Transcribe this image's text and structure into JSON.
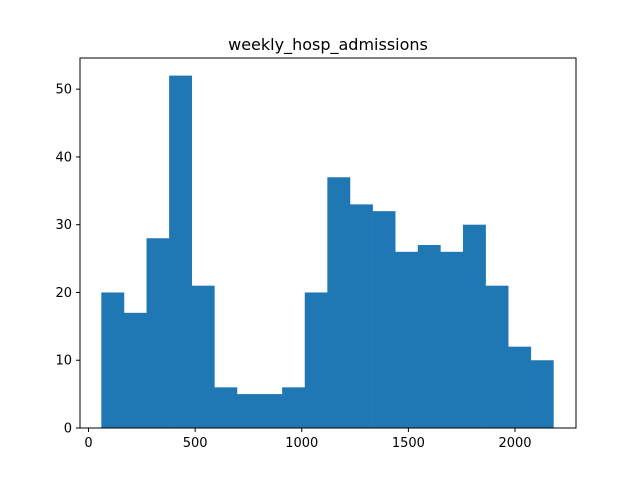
{
  "chart_data": {
    "type": "bar",
    "title": "weekly_hosp_admissions",
    "xlabel": "",
    "ylabel": "",
    "bin_edges": [
      60,
      166,
      272,
      378,
      484,
      590,
      696,
      802,
      908,
      1014,
      1120,
      1226,
      1332,
      1438,
      1544,
      1650,
      1756,
      1862,
      1968,
      2074,
      2180
    ],
    "values": [
      20,
      17,
      28,
      52,
      21,
      6,
      5,
      5,
      6,
      20,
      37,
      33,
      32,
      26,
      27,
      26,
      30,
      21,
      12,
      10
    ],
    "xlim": [
      -40,
      2286
    ],
    "ylim": [
      0,
      54.6
    ],
    "x_ticks": [
      0,
      500,
      1000,
      1500,
      2000
    ],
    "y_ticks": [
      0,
      10,
      20,
      30,
      40,
      50
    ],
    "grid": false,
    "bar_color": "#1f77b4"
  }
}
